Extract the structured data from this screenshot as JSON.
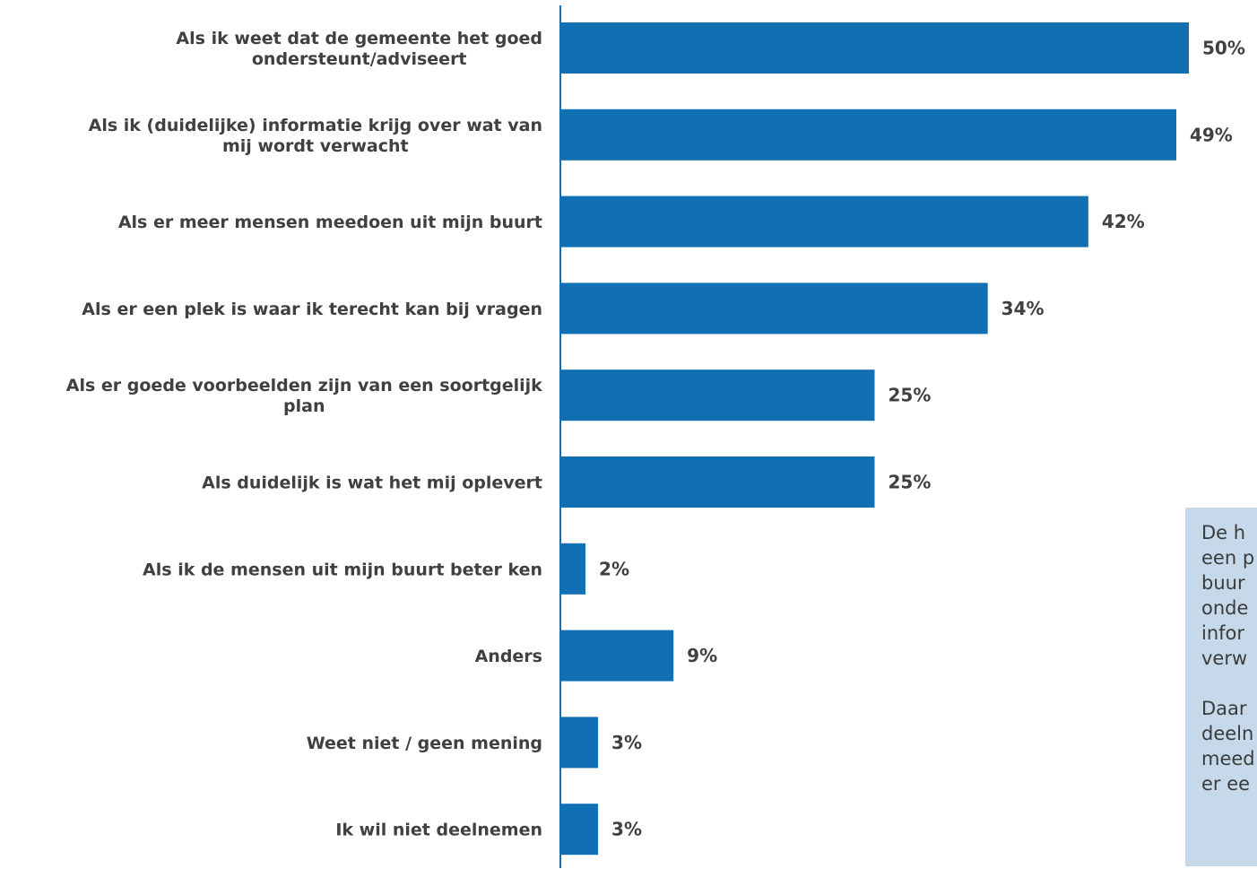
{
  "chart_data": {
    "type": "bar",
    "orientation": "horizontal",
    "categories": [
      "Als ik weet dat de gemeente het goed ondersteunt/adviseert",
      "Als ik (duidelijke) informatie krijg over wat van mij wordt verwacht",
      "Als er meer mensen meedoen uit mijn buurt",
      "Als er een plek is waar ik terecht kan bij vragen",
      "Als er goede voorbeelden zijn van een soortgelijk plan",
      "Als duidelijk is wat het mij oplevert",
      "Als ik de mensen uit mijn buurt beter ken",
      "Anders",
      "Weet niet / geen mening",
      "Ik wil niet deelnemen"
    ],
    "category_lines": [
      [
        "Als ik weet dat de gemeente het goed",
        "ondersteunt/adviseert"
      ],
      [
        "Als ik (duidelijke) informatie krijg over wat van",
        "mij wordt verwacht"
      ],
      [
        "Als er meer mensen meedoen uit mijn buurt"
      ],
      [
        "Als er een plek is waar ik terecht kan bij vragen"
      ],
      [
        "Als er goede voorbeelden zijn van een soortgelijk",
        "plan"
      ],
      [
        "Als duidelijk is wat het mij oplevert"
      ],
      [
        "Als ik de mensen uit mijn buurt beter ken"
      ],
      [
        "Anders"
      ],
      [
        "Weet niet / geen mening"
      ],
      [
        "Ik wil niet deelnemen"
      ]
    ],
    "values": [
      50,
      49,
      42,
      34,
      25,
      25,
      2,
      9,
      3,
      3
    ],
    "value_labels": [
      "50%",
      "49%",
      "42%",
      "34%",
      "25%",
      "25%",
      "2%",
      "9%",
      "3%",
      "3%"
    ],
    "unit": "%",
    "xlim": [
      0,
      50
    ],
    "grid": false,
    "legend": "none",
    "bar_color": "#1170b3",
    "axis_color": "#1170b3"
  },
  "callout": {
    "paragraphs": [
      "De h\neen p\nbuur\nonde\ninfor\nverw",
      "Daar\ndeeln\nmeed\ner ee"
    ]
  }
}
